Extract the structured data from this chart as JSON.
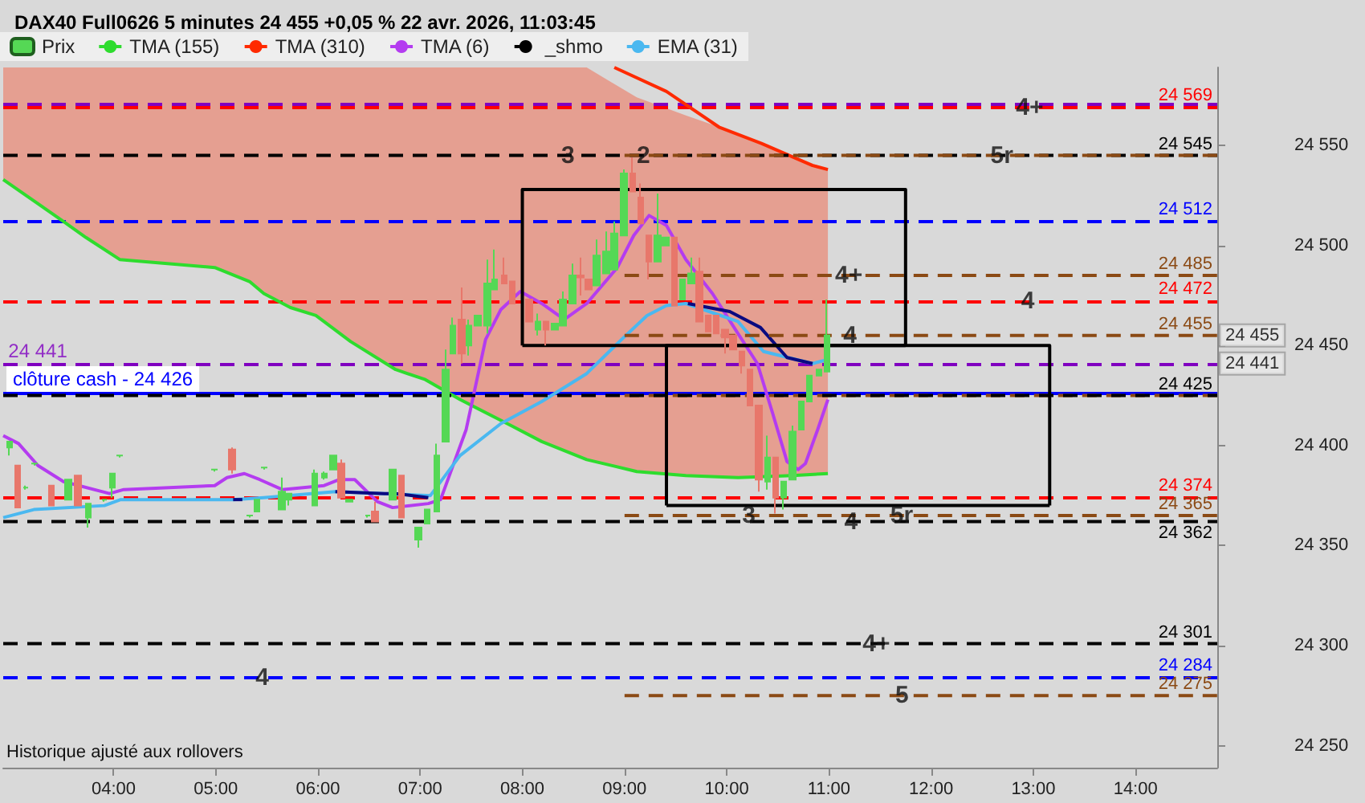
{
  "chart_data": {
    "type": "candlestick",
    "title": "DAX40 Full0626 5 minutes 24 455 +0,05 % 22 avr. 2026, 11:03:45",
    "xlim": [
      2.92,
      14.8
    ],
    "xticks": [
      {
        "value": 4,
        "label": "04:00"
      },
      {
        "value": 5,
        "label": "05:00"
      },
      {
        "value": 6,
        "label": "06:00"
      },
      {
        "value": 7,
        "label": "07:00"
      },
      {
        "value": 8,
        "label": "08:00"
      },
      {
        "value": 9,
        "label": "09:00"
      },
      {
        "value": 10,
        "label": "10:00"
      },
      {
        "value": 11,
        "label": "11:00"
      },
      {
        "value": 12,
        "label": "12:00"
      },
      {
        "value": 13,
        "label": "13:00"
      },
      {
        "value": 14,
        "label": "14:00"
      }
    ],
    "ylim": [
      24239,
      24589
    ],
    "yticks": [
      {
        "value": 24250,
        "label": "24 250"
      },
      {
        "value": 24300,
        "label": "24 300"
      },
      {
        "value": 24350,
        "label": "24 350"
      },
      {
        "value": 24400,
        "label": "24 400"
      },
      {
        "value": 24450,
        "label": "24 450"
      },
      {
        "value": 24500,
        "label": "24 500"
      },
      {
        "value": 24550,
        "label": "24 550"
      }
    ],
    "legend": "top left",
    "marker": "none",
    "line_style": "solid",
    "series": [
      {
        "name": "Prix",
        "x": [
          2.98,
          3.06,
          3.14,
          3.23,
          3.39,
          3.56,
          3.65,
          3.75,
          3.91,
          3.99,
          4.06,
          4.99,
          5.16,
          5.33,
          5.4,
          5.47,
          5.65,
          5.72,
          5.97,
          6.06,
          6.15,
          6.23,
          6.31,
          6.49,
          6.56,
          6.73,
          6.82,
          6.98,
          7.07,
          7.16,
          7.25,
          7.32,
          7.41,
          7.48,
          7.56,
          7.66,
          7.73,
          7.82,
          7.9,
          8.07,
          8.15,
          8.23,
          8.32,
          8.4,
          8.49,
          8.57,
          8.65,
          8.73,
          8.82,
          8.9,
          8.99,
          9.08,
          9.16,
          9.24,
          9.32,
          9.4,
          9.49,
          9.57,
          9.65,
          9.73,
          9.82,
          9.9,
          9.98,
          10.06,
          10.15,
          10.23,
          10.31,
          10.4,
          10.48,
          10.56,
          10.64,
          10.73,
          10.81,
          10.9,
          10.98
        ],
        "ohlc": [
          [
            24399,
            24402,
            24395,
            24402
          ],
          [
            24390,
            24390,
            24369,
            24369
          ],
          [
            24379,
            24380,
            24378,
            24379
          ],
          [
            24391,
            24391,
            24390,
            24391
          ],
          [
            24380,
            24380,
            24370,
            24370
          ],
          [
            24373,
            24383,
            24373,
            24383
          ],
          [
            24385,
            24385,
            24370,
            24370
          ],
          [
            24364,
            24371,
            24359,
            24371
          ],
          [
            24373,
            24373,
            24372,
            24373
          ],
          [
            24379,
            24386,
            24374,
            24386
          ],
          [
            24395,
            24395,
            24394,
            24395
          ],
          [
            24388,
            24388,
            24387,
            24388
          ],
          [
            24398,
            24399,
            24386,
            24388
          ],
          [
            24365,
            24365,
            24364,
            24365
          ],
          [
            24367,
            24373,
            24367,
            24373
          ],
          [
            24389,
            24389,
            24388,
            24389
          ],
          [
            24368,
            24384,
            24368,
            24377
          ],
          [
            24373,
            24376,
            24370,
            24376
          ],
          [
            24370,
            24388,
            24370,
            24386
          ],
          [
            24384,
            24387,
            24383,
            24386
          ],
          [
            24388,
            24395,
            24388,
            24395
          ],
          [
            24391,
            24393,
            24374,
            24374
          ],
          [
            24372,
            24373,
            24372,
            24373
          ],
          [
            24365,
            24365,
            24364,
            24365
          ],
          [
            24367,
            24372,
            24362,
            24362
          ],
          [
            24373,
            24388,
            24373,
            24388
          ],
          [
            24385,
            24385,
            24364,
            24364
          ],
          [
            24353,
            24359,
            24349,
            24359
          ],
          [
            24361,
            24368,
            24361,
            24368
          ],
          [
            24367,
            24401,
            24367,
            24395
          ],
          [
            24402,
            24448,
            24402,
            24438
          ],
          [
            24446,
            24464,
            24446,
            24460
          ],
          [
            24463,
            24479,
            24441,
            24446
          ],
          [
            24450,
            24463,
            24445,
            24460
          ],
          [
            24460,
            24465,
            24460,
            24465
          ],
          [
            24460,
            24493,
            24456,
            24481
          ],
          [
            24478,
            24498,
            24478,
            24483
          ],
          [
            24485,
            24494,
            24481,
            24481
          ],
          [
            24482,
            24482,
            24471,
            24471
          ],
          [
            24473,
            24473,
            24462,
            24462
          ],
          [
            24458,
            24466,
            24455,
            24462
          ],
          [
            24462,
            24462,
            24450,
            24458
          ],
          [
            24458,
            24461,
            24458,
            24461
          ],
          [
            24460,
            24477,
            24460,
            24473
          ],
          [
            24471,
            24491,
            24471,
            24485
          ],
          [
            24485,
            24494,
            24475,
            24484
          ],
          [
            24483,
            24483,
            24478,
            24478
          ],
          [
            24480,
            24503,
            24480,
            24495
          ],
          [
            24486,
            24507,
            24486,
            24497
          ],
          [
            24488,
            24512,
            24488,
            24506
          ],
          [
            24505,
            24538,
            24505,
            24536
          ],
          [
            24536,
            24544,
            24527,
            24527
          ],
          [
            24524,
            24531,
            24511,
            24511
          ],
          [
            24505,
            24505,
            24483,
            24492
          ],
          [
            24492,
            24526,
            24492,
            24505
          ],
          [
            24500,
            24504,
            24500,
            24504
          ],
          [
            24504,
            24504,
            24470,
            24470
          ],
          [
            24473,
            24483,
            24473,
            24483
          ],
          [
            24481,
            24494,
            24481,
            24486
          ],
          [
            24487,
            24494,
            24462,
            24462
          ],
          [
            24465,
            24465,
            24457,
            24457
          ],
          [
            24465,
            24465,
            24456,
            24456
          ],
          [
            24458,
            24458,
            24446,
            24454
          ],
          [
            24455,
            24455,
            24448,
            24448
          ],
          [
            24447,
            24447,
            24436,
            24440
          ],
          [
            24438,
            24438,
            24420,
            24420
          ],
          [
            24420,
            24420,
            24377,
            24383
          ],
          [
            24382,
            24405,
            24378,
            24394
          ],
          [
            24394,
            24394,
            24366,
            24374
          ],
          [
            24374,
            24382,
            24368,
            24382
          ],
          [
            24383,
            24410,
            24383,
            24407
          ],
          [
            24408,
            24422,
            24408,
            24422
          ],
          [
            24422,
            24435,
            24422,
            24435
          ],
          [
            24435,
            24438,
            24435,
            24438
          ],
          [
            24437,
            24473,
            24437,
            24455
          ]
        ],
        "colors": [
          "#55d855",
          "#e8776b",
          "#55d855",
          "#55d855",
          "#e8776b",
          "#55d855",
          "#e8776b",
          "#55d855",
          "#55d855",
          "#55d855",
          "#55d855",
          "#55d855",
          "#e8776b",
          "#55d855",
          "#55d855",
          "#55d855",
          "#55d855",
          "#55d855",
          "#55d855",
          "#55d855",
          "#55d855",
          "#e8776b",
          "#55d855",
          "#55d855",
          "#e8776b",
          "#55d855",
          "#e8776b",
          "#55d855",
          "#55d855",
          "#55d855",
          "#55d855",
          "#55d855",
          "#e8776b",
          "#55d855",
          "#55d855",
          "#55d855",
          "#55d855",
          "#e8776b",
          "#e8776b",
          "#e8776b",
          "#55d855",
          "#e8776b",
          "#55d855",
          "#55d855",
          "#55d855",
          "#e8776b",
          "#e8776b",
          "#55d855",
          "#55d855",
          "#55d855",
          "#55d855",
          "#e8776b",
          "#e8776b",
          "#e8776b",
          "#55d855",
          "#55d855",
          "#e8776b",
          "#55d855",
          "#55d855",
          "#e8776b",
          "#e8776b",
          "#e8776b",
          "#e8776b",
          "#e8776b",
          "#e8776b",
          "#e8776b",
          "#e8776b",
          "#55d855",
          "#e8776b",
          "#55d855",
          "#55d855",
          "#55d855",
          "#55d855",
          "#55d855",
          "#55d855"
        ]
      },
      {
        "name": "TMA (155)",
        "type": "line",
        "color": "#2edc2e",
        "x": [
          2.92,
          3.51,
          3.73,
          4.06,
          4.99,
          5.33,
          5.47,
          5.73,
          5.98,
          6.32,
          6.76,
          7.05,
          7.39,
          7.89,
          8.19,
          8.63,
          9.12,
          9.6,
          10.11,
          10.64,
          10.99
        ],
        "values": [
          24533,
          24512,
          24504,
          24493,
          24489,
          24482,
          24476,
          24469,
          24465,
          24452,
          24438,
          24433,
          24423,
          24410,
          24402,
          24393,
          24387,
          24385,
          24384,
          24385,
          24386
        ],
        "lower": [
          24533,
          24512,
          24504,
          24493,
          24489,
          24482,
          24476,
          24469,
          24465,
          24452,
          24438,
          24433,
          24423,
          24410,
          24402,
          24393,
          24387,
          24385,
          24384,
          24385,
          24386
        ],
        "upper": [
          24589,
          24589,
          24589,
          24589,
          24589,
          24589,
          24589,
          24589,
          24589,
          24589,
          24589,
          24589,
          24589,
          24589,
          24589,
          24589,
          24574,
          24565,
          24556,
          24545,
          24538
        ]
      },
      {
        "name": "TMA (310)",
        "type": "line",
        "color": "#ff2a00",
        "x": [
          8.9,
          9.41,
          9.93,
          10.34,
          10.84,
          10.99
        ],
        "values": [
          24589,
          24577,
          24559,
          24551,
          24540,
          24538
        ]
      },
      {
        "name": "TMA (6)",
        "type": "line",
        "color": "#b43cf0",
        "x": [
          2.92,
          3.07,
          3.26,
          3.51,
          3.96,
          4.1,
          4.99,
          5.11,
          5.28,
          5.43,
          5.65,
          6.06,
          6.21,
          6.36,
          6.58,
          6.73,
          7.08,
          7.2,
          7.45,
          7.64,
          7.79,
          7.98,
          8.19,
          8.41,
          8.63,
          8.93,
          9.09,
          9.24,
          9.41,
          9.6,
          9.86,
          10.11,
          10.3,
          10.45,
          10.59,
          10.7,
          10.77,
          10.89,
          10.99
        ],
        "values": [
          24405,
          24401,
          24390,
          24382,
          24376,
          24378,
          24380,
          24384,
          24386,
          24383,
          24378,
          24380,
          24383,
          24383,
          24372,
          24369,
          24371,
          24373,
          24408,
          24453,
          24468,
          24477,
          24471,
          24463,
          24471,
          24489,
          24505,
          24515,
          24510,
          24493,
          24476,
          24456,
          24441,
          24416,
          24392,
          24388,
          24391,
          24408,
          24423
        ]
      },
      {
        "name": "_shmo",
        "type": "line",
        "color": "#000000",
        "line_style": "dashed",
        "x": [
          2.92,
          14.8
        ],
        "values": [
          24545,
          24545
        ],
        "value_labels": [
          null,
          "24 545"
        ]
      },
      {
        "name": "EMA (31)",
        "type": "line",
        "color": "#4ab8f0",
        "x": [
          2.92,
          3.22,
          3.91,
          4.07,
          5.17,
          5.47,
          6.17,
          7.1,
          7.39,
          7.79,
          8.19,
          8.63,
          8.97,
          9.22,
          9.41,
          9.6,
          10.11,
          10.36,
          10.84,
          10.99
        ],
        "values": [
          24364,
          24368,
          24370,
          24373,
          24373,
          24374,
          24377,
          24375,
          24395,
          24411,
          24422,
          24436,
          24453,
          24465,
          24470,
          24471,
          24462,
          24447,
          24441,
          24443
        ]
      },
      {
        "type": "line",
        "color": "#0a0a80",
        "x": [
          5.17,
          5.26
        ],
        "values": [
          24373,
          24373
        ]
      },
      {
        "type": "line",
        "color": "#0a0a80",
        "x": [
          6.17,
          6.65,
          6.76,
          7.08
        ],
        "values": [
          24377,
          24376,
          24376,
          24374
        ]
      },
      {
        "type": "line",
        "color": "#0a0a80",
        "x": [
          9.62,
          10.03,
          10.33,
          10.59,
          10.84
        ],
        "values": [
          24471,
          24467,
          24459,
          24444,
          24441
        ]
      },
      {
        "type": "line",
        "color": "#8b4a14",
        "line_style": "dashed",
        "x": [
          9.0,
          14.8
        ],
        "values": [
          24545,
          24545
        ]
      },
      {
        "type": "line",
        "color": "#8b4a14",
        "line_style": "dashed",
        "x": [
          9.0,
          14.8
        ],
        "values": [
          24485,
          24485
        ],
        "value_labels": [
          null,
          "24 485"
        ]
      },
      {
        "type": "line",
        "color": "#8b4a14",
        "line_style": "dashed",
        "x": [
          9.0,
          14.8
        ],
        "values": [
          24455,
          24455
        ],
        "value_labels": [
          null,
          "24 455"
        ]
      },
      {
        "type": "line",
        "color": "#8b4a14",
        "line_style": "dashed",
        "x": [
          9.0,
          14.8
        ],
        "values": [
          24425,
          24425
        ]
      },
      {
        "type": "line",
        "color": "#8b4a14",
        "line_style": "dashed",
        "x": [
          9.0,
          14.8
        ],
        "values": [
          24365,
          24365
        ],
        "value_labels": [
          null,
          "24 365"
        ]
      },
      {
        "type": "line",
        "color": "#8b4a14",
        "line_style": "dashed",
        "x": [
          9.0,
          14.8
        ],
        "values": [
          24275,
          24275
        ],
        "value_labels": [
          null,
          "24 275"
        ]
      },
      {
        "type": "line",
        "color": "#000000",
        "line_style": "dashed",
        "x": [
          2.92,
          14.8
        ],
        "values": [
          24425,
          24425
        ],
        "value_labels": [
          null,
          "24 425"
        ]
      },
      {
        "type": "line",
        "color": "#000000",
        "line_style": "dashed",
        "x": [
          2.92,
          14.8
        ],
        "values": [
          24362,
          24362
        ],
        "value_labels": [
          null,
          "24 362"
        ]
      },
      {
        "type": "line",
        "color": "#000000",
        "line_style": "dashed",
        "x": [
          2.92,
          14.8
        ],
        "values": [
          24301,
          24301
        ],
        "value_labels": [
          null,
          "24 301"
        ]
      },
      {
        "type": "line",
        "color": "#000000",
        "x": [
          8.0,
          8.0,
          11.75,
          11.75
        ],
        "values": [
          24450,
          24528,
          24528,
          24450
        ]
      },
      {
        "type": "line",
        "color": "#000000",
        "x": [
          8.0,
          11.75
        ],
        "values": [
          24450,
          24450
        ]
      },
      {
        "type": "line",
        "color": "#000000",
        "x": [
          9.41,
          9.41,
          13.16,
          13.16
        ],
        "values": [
          24370,
          24450,
          24450,
          24370
        ]
      },
      {
        "type": "line",
        "color": "#000000",
        "x": [
          9.41,
          13.16
        ],
        "values": [
          24370,
          24370
        ]
      }
    ],
    "ref_lines": [
      {
        "axis": "y",
        "value": 24571,
        "color": "#8000c0",
        "line_style": "dashed"
      },
      {
        "axis": "y",
        "value": 24569,
        "label": "24 569",
        "color": "#ff0000",
        "line_style": "dashed"
      },
      {
        "axis": "y",
        "value": 24512,
        "label": "24 512",
        "color": "#0000ff",
        "line_style": "dashed"
      },
      {
        "axis": "y",
        "value": 24472,
        "label": "24 472",
        "color": "#ff0000",
        "line_style": "dashed"
      },
      {
        "axis": "y",
        "value": 24441,
        "color": "#8000c0",
        "line_style": "dashed"
      },
      {
        "axis": "y",
        "value": 24426,
        "label": "clôture cash - 24 426",
        "color": "#0000ff",
        "line_style": "solid"
      },
      {
        "axis": "y",
        "value": 24374,
        "label": "24 374",
        "color": "#ff0000",
        "line_style": "dashed"
      },
      {
        "axis": "y",
        "value": 24284,
        "label": "24 284",
        "color": "#0000ff",
        "line_style": "dashed"
      }
    ],
    "annotations": [
      {
        "text": "4+",
        "x": 12.83,
        "y": 24569
      },
      {
        "text": "3",
        "x": 8.38,
        "y": 24545
      },
      {
        "text": "2",
        "x": 9.12,
        "y": 24545
      },
      {
        "text": "5r",
        "x": 12.58,
        "y": 24545
      },
      {
        "text": "4+",
        "x": 11.06,
        "y": 24485
      },
      {
        "text": "4",
        "x": 12.88,
        "y": 24472
      },
      {
        "text": "4",
        "x": 11.14,
        "y": 24455
      },
      {
        "text": "3",
        "x": 10.15,
        "y": 24365
      },
      {
        "text": "4",
        "x": 11.15,
        "y": 24362
      },
      {
        "text": "5r",
        "x": 11.6,
        "y": 24365
      },
      {
        "text": "4+",
        "x": 11.33,
        "y": 24301
      },
      {
        "text": "4",
        "x": 5.39,
        "y": 24284
      },
      {
        "text": "5",
        "x": 11.65,
        "y": 24275
      },
      {
        "text": "24 441",
        "x": 2.97,
        "y": 24441
      },
      {
        "text": "24 455",
        "x": 14.8,
        "y": 24455
      },
      {
        "text": "24 441",
        "x": 14.8,
        "y": 24441
      },
      "Historique ajusté aux rollovers"
    ]
  }
}
